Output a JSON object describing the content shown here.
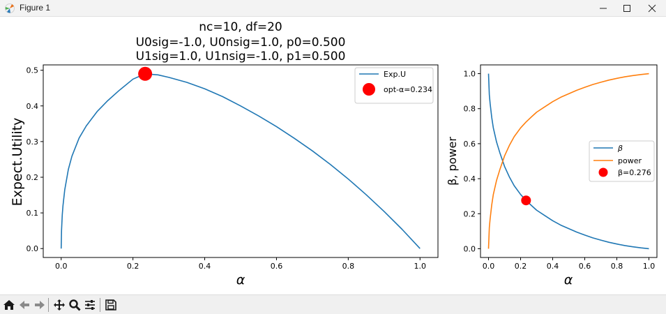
{
  "window": {
    "title": "Figure 1"
  },
  "colors": {
    "blue": "#1f77b4",
    "orange": "#ff7f0e",
    "red": "#ff0000"
  },
  "toolbar": {
    "icons": [
      "home-icon",
      "back-arrow-icon",
      "forward-arrow-icon",
      "pan-icon",
      "zoom-icon",
      "configure-subplots-icon",
      "save-icon"
    ]
  },
  "chart_data": [
    {
      "type": "line",
      "title": [
        "nc=10, df=20",
        "U0sig=-1.0, U0nsig=1.0, p0=0.500",
        "U1sig=1.0, U1nsig=-1.0, p1=0.500"
      ],
      "xlabel": "α",
      "ylabel": "Expect.Utility",
      "xlim": [
        -0.05,
        1.05
      ],
      "ylim": [
        -0.025,
        0.515
      ],
      "xticks": [
        0.0,
        0.2,
        0.4,
        0.6,
        0.8,
        1.0
      ],
      "xtick_labels": [
        "0.0",
        "0.2",
        "0.4",
        "0.6",
        "0.8",
        "1.0"
      ],
      "yticks": [
        0.0,
        0.1,
        0.2,
        0.3,
        0.4,
        0.5
      ],
      "ytick_labels": [
        "0.0",
        "0.1",
        "0.2",
        "0.3",
        "0.4",
        "0.5"
      ],
      "grid": false,
      "legend_position": "upper right",
      "series": [
        {
          "name": "Exp.U",
          "color": "#1f77b4",
          "x": [
            0,
            0.001,
            0.003,
            0.005,
            0.01,
            0.02,
            0.03,
            0.05,
            0.07,
            0.1,
            0.13,
            0.16,
            0.2,
            0.234,
            0.27,
            0.3,
            0.35,
            0.4,
            0.45,
            0.5,
            0.55,
            0.6,
            0.65,
            0.7,
            0.75,
            0.8,
            0.85,
            0.9,
            0.95,
            1.0
          ],
          "y": [
            0.0,
            0.051,
            0.094,
            0.12,
            0.165,
            0.222,
            0.259,
            0.31,
            0.344,
            0.384,
            0.415,
            0.442,
            0.475,
            0.49,
            0.487,
            0.48,
            0.466,
            0.448,
            0.426,
            0.4,
            0.372,
            0.342,
            0.309,
            0.274,
            0.236,
            0.195,
            0.151,
            0.104,
            0.054,
            0.0
          ]
        }
      ],
      "points": [
        {
          "name": "opt-α=0.234",
          "x": 0.234,
          "y": 0.49,
          "color": "#ff0000"
        }
      ]
    },
    {
      "type": "line",
      "xlabel": "α",
      "ylabel": "β, power",
      "xlim": [
        -0.05,
        1.05
      ],
      "ylim": [
        -0.05,
        1.05
      ],
      "xticks": [
        0.0,
        0.2,
        0.4,
        0.6,
        0.8,
        1.0
      ],
      "xtick_labels": [
        "0.0",
        "0.2",
        "0.4",
        "0.6",
        "0.8",
        "1.0"
      ],
      "yticks": [
        0.0,
        0.2,
        0.4,
        0.6,
        0.8,
        1.0
      ],
      "ytick_labels": [
        "0.0",
        "0.2",
        "0.4",
        "0.6",
        "0.8",
        "1.0"
      ],
      "grid": false,
      "legend_position": "center right",
      "series": [
        {
          "name": "β",
          "color": "#1f77b4",
          "x": [
            0,
            0.005,
            0.01,
            0.02,
            0.03,
            0.05,
            0.07,
            0.1,
            0.13,
            0.16,
            0.2,
            0.234,
            0.27,
            0.3,
            0.35,
            0.4,
            0.45,
            0.5,
            0.55,
            0.6,
            0.65,
            0.7,
            0.75,
            0.8,
            0.85,
            0.9,
            0.95,
            1.0
          ],
          "y": [
            1.0,
            0.88,
            0.83,
            0.75,
            0.69,
            0.61,
            0.55,
            0.47,
            0.41,
            0.36,
            0.31,
            0.276,
            0.245,
            0.22,
            0.19,
            0.16,
            0.135,
            0.115,
            0.095,
            0.078,
            0.062,
            0.049,
            0.037,
            0.027,
            0.018,
            0.011,
            0.005,
            0.0
          ]
        },
        {
          "name": "power",
          "color": "#ff7f0e",
          "x": [
            0,
            0.005,
            0.01,
            0.02,
            0.03,
            0.05,
            0.07,
            0.1,
            0.13,
            0.16,
            0.2,
            0.234,
            0.27,
            0.3,
            0.35,
            0.4,
            0.45,
            0.5,
            0.55,
            0.6,
            0.65,
            0.7,
            0.75,
            0.8,
            0.85,
            0.9,
            0.95,
            1.0
          ],
          "y": [
            0.0,
            0.12,
            0.17,
            0.25,
            0.31,
            0.39,
            0.45,
            0.53,
            0.59,
            0.64,
            0.69,
            0.724,
            0.755,
            0.78,
            0.81,
            0.84,
            0.865,
            0.885,
            0.905,
            0.922,
            0.938,
            0.951,
            0.963,
            0.973,
            0.982,
            0.989,
            0.995,
            1.0
          ]
        }
      ],
      "points": [
        {
          "name": "β=0.276",
          "x": 0.234,
          "y": 0.276,
          "color": "#ff0000"
        }
      ]
    }
  ]
}
